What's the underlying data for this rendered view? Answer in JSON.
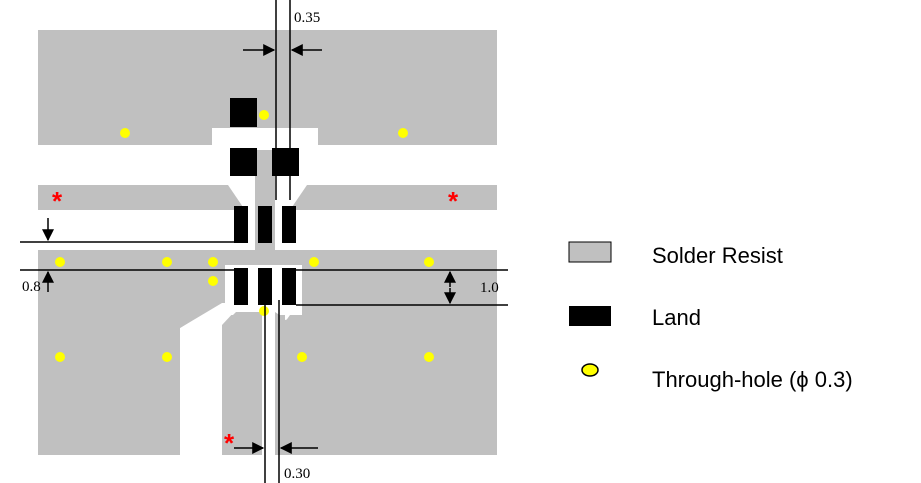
{
  "dimensions": {
    "top_gap": "0.35",
    "bottom_gap": "0.30",
    "left_offset": "0.8",
    "right_height": "1.0"
  },
  "marker": "*",
  "legend": {
    "solder_resist": "Solder Resist",
    "land": "Land",
    "through_hole": "Through-hole (ϕ 0.3)"
  },
  "colors": {
    "solder_resist": "#c0c0c0",
    "land": "#000000",
    "through_hole": "#ffff00",
    "marker": "#ff0000"
  }
}
